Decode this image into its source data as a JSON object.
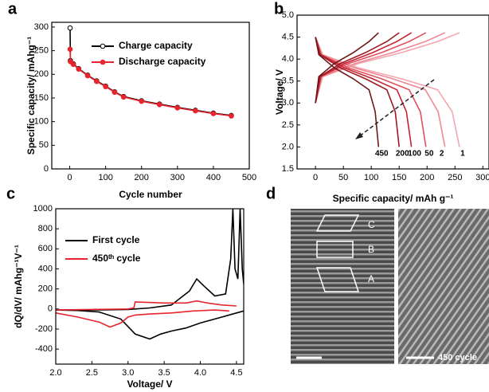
{
  "chart_data": [
    {
      "type": "line",
      "panel": "a",
      "xlabel": "Cycle number",
      "ylabel": "Specific capacity/ mAhg⁻¹",
      "xlim": [
        -50,
        500
      ],
      "ylim": [
        0,
        310
      ],
      "xticks": [
        0,
        100,
        200,
        300,
        400,
        500
      ],
      "yticks": [
        0,
        50,
        100,
        150,
        200,
        250,
        300
      ],
      "series": [
        {
          "name": "Charge capacity",
          "color": "#000000",
          "marker": "open-circle",
          "x": [
            1,
            2,
            10,
            25,
            50,
            75,
            100,
            125,
            150,
            200,
            250,
            300,
            350,
            400,
            450
          ],
          "values": [
            298,
            229,
            222,
            212,
            198,
            186,
            175,
            163,
            153,
            144,
            137,
            130,
            124,
            118,
            113
          ]
        },
        {
          "name": "Discharge capacity",
          "color": "#e8242c",
          "marker": "circle",
          "x": [
            1,
            2,
            10,
            25,
            50,
            75,
            100,
            125,
            150,
            200,
            250,
            300,
            350,
            400,
            450
          ],
          "values": [
            253,
            227,
            221,
            211,
            197,
            185,
            174,
            162,
            152,
            143,
            136,
            129,
            123,
            117,
            112
          ]
        }
      ]
    },
    {
      "type": "line",
      "panel": "b",
      "xlabel": "Specific capacity/ mAh g⁻¹",
      "ylabel": "Voltage/ V",
      "xlim": [
        -33,
        311
      ],
      "ylim": [
        1.5,
        5.0
      ],
      "xticks": [
        0,
        50,
        100,
        150,
        200,
        250,
        300
      ],
      "yticks": [
        1.5,
        {
          "value": 2.0,
          "label": "2.0"
        },
        2.5,
        {
          "value": 3.0,
          "label": "3.0"
        },
        3.5,
        {
          "value": 4.0,
          "label": "4.0"
        },
        4.5,
        {
          "value": 5.0,
          "label": "5.0"
        }
      ],
      "series": [
        {
          "name": "1",
          "color": "#f4a6b0",
          "x": [
            0,
            13,
            77,
            155,
            219,
            258,
            null,
            0,
            13,
            77,
            155,
            219,
            245,
            258
          ],
          "values": [
            3.0,
            3.6,
            3.9,
            4.15,
            4.4,
            4.6,
            null,
            4.5,
            4.1,
            3.8,
            3.55,
            3.3,
            2.8,
            2.0
          ]
        },
        {
          "name": "2",
          "color": "#ee8a96",
          "x": [
            0,
            12,
            70,
            139,
            197,
            232,
            null,
            0,
            12,
            70,
            139,
            197,
            220,
            232
          ],
          "values": [
            3.0,
            3.6,
            3.9,
            4.15,
            4.4,
            4.6,
            null,
            4.5,
            4.1,
            3.8,
            3.55,
            3.3,
            2.8,
            2.0
          ]
        },
        {
          "name": "50",
          "color": "#e0505e",
          "x": [
            0,
            10,
            59,
            119,
            168,
            198,
            null,
            0,
            10,
            59,
            119,
            168,
            188,
            198
          ],
          "values": [
            3.0,
            3.6,
            3.9,
            4.15,
            4.4,
            4.6,
            null,
            4.5,
            4.1,
            3.8,
            3.55,
            3.3,
            2.8,
            2.0
          ]
        },
        {
          "name": "100",
          "color": "#c82232",
          "x": [
            0,
            9,
            52,
            103,
            146,
            172,
            null,
            0,
            9,
            52,
            103,
            146,
            163,
            172
          ],
          "values": [
            3.0,
            3.6,
            3.9,
            4.15,
            4.4,
            4.6,
            null,
            4.5,
            4.1,
            3.8,
            3.55,
            3.3,
            2.8,
            2.0
          ]
        },
        {
          "name": "200",
          "color": "#9c1a22",
          "x": [
            0,
            8,
            45,
            90,
            128,
            150,
            null,
            0,
            8,
            45,
            90,
            128,
            143,
            150
          ],
          "values": [
            3.0,
            3.6,
            3.9,
            4.15,
            4.4,
            4.6,
            null,
            4.5,
            4.1,
            3.8,
            3.55,
            3.3,
            2.8,
            2.0
          ]
        },
        {
          "name": "450",
          "color": "#6e1818",
          "x": [
            0,
            6,
            34,
            68,
            96,
            113,
            null,
            0,
            6,
            34,
            68,
            96,
            107,
            113
          ],
          "values": [
            3.0,
            3.6,
            3.9,
            4.15,
            4.4,
            4.6,
            null,
            4.5,
            4.1,
            3.8,
            3.55,
            3.3,
            2.8,
            2.0
          ]
        }
      ]
    },
    {
      "type": "line",
      "panel": "c",
      "xlabel": "Voltage/ V",
      "ylabel": "dQ/dV/ mAhg⁻¹V⁻¹",
      "xlim": [
        2.0,
        4.6
      ],
      "ylim": [
        -550,
        1000
      ],
      "xticks": [
        {
          "value": 2.0,
          "label": "2.0"
        },
        2.5,
        {
          "value": 3.0,
          "label": "3.0"
        },
        3.5,
        {
          "value": 4.0,
          "label": "4.0"
        },
        4.5
      ],
      "yticks": [
        -400,
        -200,
        0,
        200,
        400,
        600,
        800,
        1000
      ],
      "series": [
        {
          "name": "First cycle",
          "color": "#000000",
          "x": [
            2.0,
            2.5,
            3.0,
            3.3,
            3.6,
            3.85,
            3.95,
            4.05,
            4.2,
            4.35,
            4.42,
            4.45,
            4.48,
            4.52,
            4.55,
            4.58,
            4.6,
            null,
            4.6,
            4.5,
            4.3,
            4.0,
            3.8,
            3.6,
            3.45,
            3.3,
            3.1,
            2.9,
            2.6,
            2.3,
            2.0
          ],
          "values": [
            -10,
            -10,
            -5,
            10,
            40,
            180,
            300,
            230,
            130,
            150,
            500,
            1000,
            400,
            300,
            1000,
            400,
            250,
            null,
            -20,
            -40,
            -80,
            -140,
            -190,
            -220,
            -250,
            -300,
            -250,
            -100,
            -30,
            -15,
            -10
          ]
        },
        {
          "name": "450ᵗʰ cycle",
          "color": "#e8242c",
          "x": [
            2.0,
            2.5,
            3.0,
            3.08,
            3.1,
            3.5,
            3.8,
            3.95,
            4.1,
            4.3,
            4.5,
            null,
            4.4,
            4.2,
            3.9,
            3.6,
            3.3,
            3.1,
            3.0,
            2.9,
            2.75,
            2.6,
            2.3,
            2.0
          ],
          "values": [
            -10,
            -5,
            0,
            10,
            70,
            60,
            60,
            80,
            60,
            40,
            30,
            null,
            -20,
            -10,
            -20,
            -40,
            -50,
            -60,
            -80,
            -140,
            -180,
            -130,
            -80,
            -40
          ]
        }
      ]
    },
    {
      "type": "image",
      "panel": "d",
      "region_labels": [
        "C",
        "B",
        "A"
      ],
      "caption": "450 cycle"
    }
  ]
}
